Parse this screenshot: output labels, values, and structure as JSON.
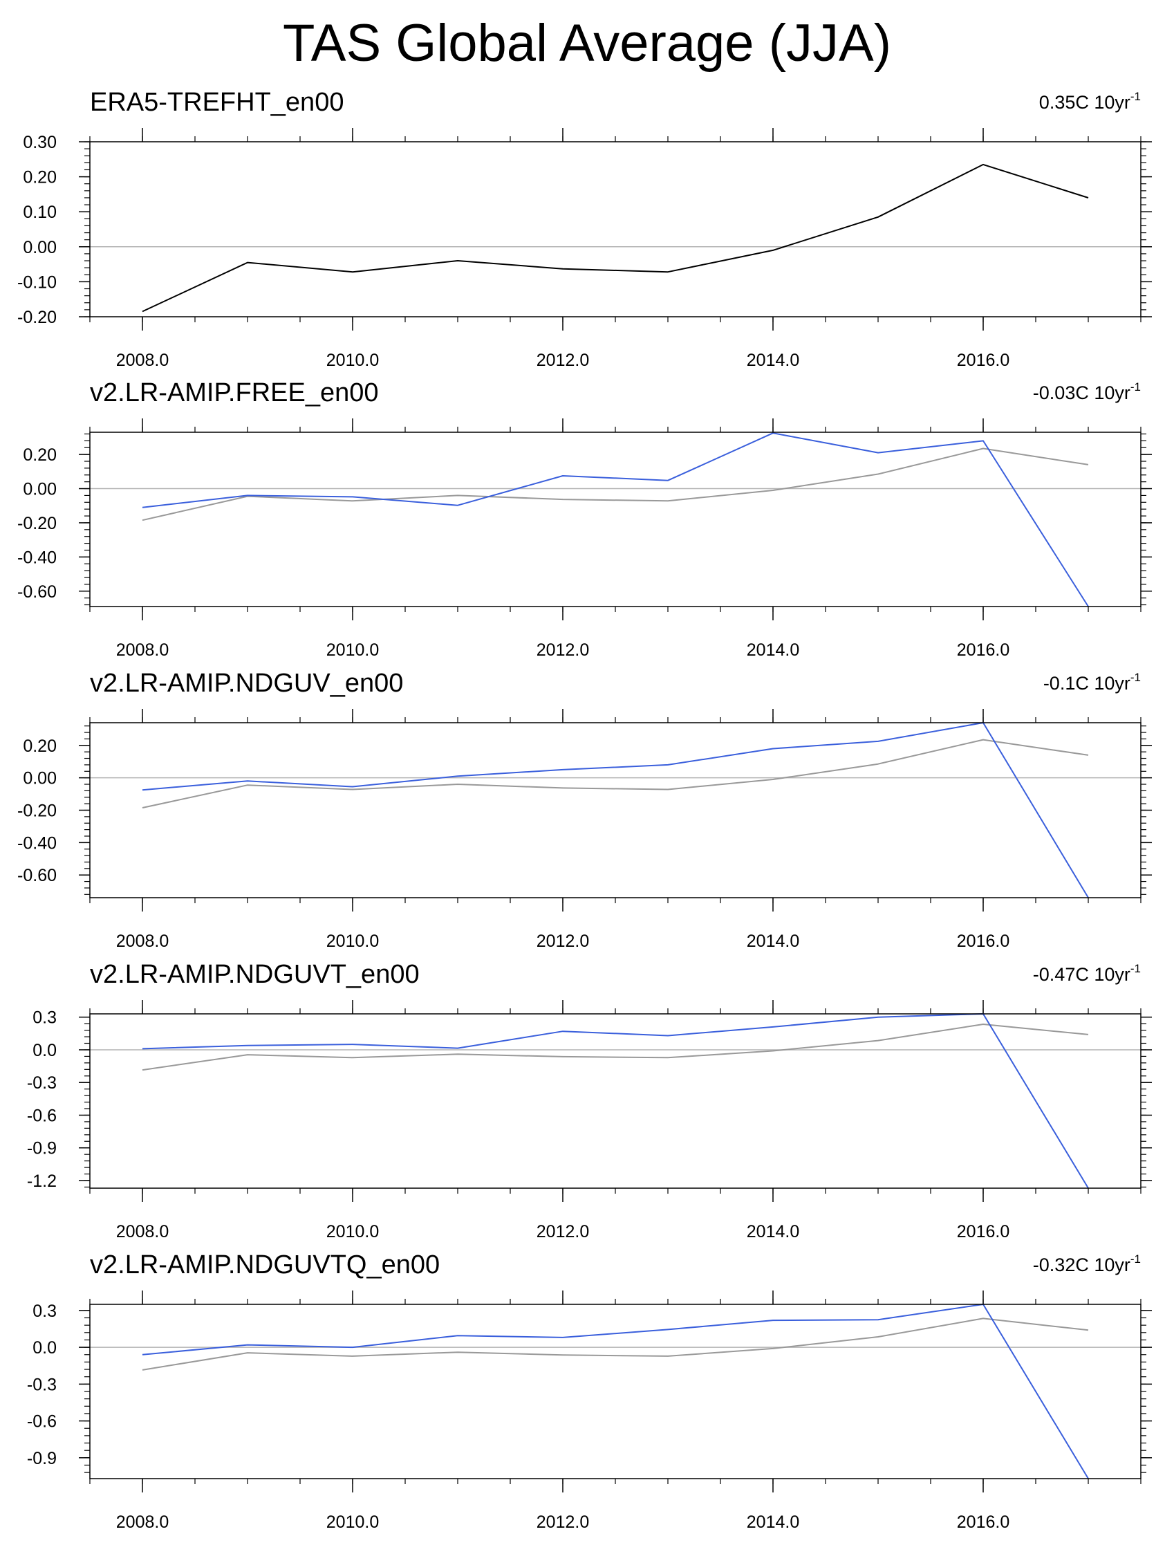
{
  "title": "TAS Global Average (JJA)",
  "colors": {
    "observed": "#000000",
    "reference": "#999999",
    "model": "#3a5fdc",
    "zero_line": "#b3b3b3",
    "axis": "#000000"
  },
  "chart_data": [
    {
      "type": "line",
      "title": "ERA5-TREFHT_en00",
      "trend_value": "0.35C 10yr",
      "trend_exponent": "-1",
      "xlabel": "",
      "ylabel": "",
      "x": [
        2008,
        2009,
        2010,
        2011,
        2012,
        2013,
        2014,
        2015,
        2016,
        2017
      ],
      "xlim": [
        2007.5,
        2017.5
      ],
      "xticks": [
        2008,
        2010,
        2012,
        2014,
        2016
      ],
      "xtick_labels": [
        "2008.0",
        "2010.0",
        "2012.0",
        "2014.0",
        "2016.0"
      ],
      "ylim": [
        -0.2,
        0.3
      ],
      "yticks": [
        -0.2,
        -0.1,
        0.0,
        0.1,
        0.2,
        0.3
      ],
      "ytick_labels": [
        "-0.20",
        "-0.10",
        "0.00",
        "0.10",
        "0.20",
        "0.30"
      ],
      "yminor_step": 0.02,
      "series": [
        {
          "name": "ERA5-TREFHT_en00",
          "color": "#000000",
          "values": [
            -0.185,
            -0.045,
            -0.072,
            -0.04,
            -0.063,
            -0.072,
            -0.01,
            0.085,
            0.235,
            0.14
          ]
        }
      ]
    },
    {
      "type": "line",
      "title": "v2.LR-AMIP.FREE_en00",
      "trend_value": "-0.03C 10yr",
      "trend_exponent": "-1",
      "xlabel": "",
      "ylabel": "",
      "x": [
        2008,
        2009,
        2010,
        2011,
        2012,
        2013,
        2014,
        2015,
        2016,
        2017
      ],
      "xlim": [
        2007.5,
        2017.5
      ],
      "xticks": [
        2008,
        2010,
        2012,
        2014,
        2016
      ],
      "xtick_labels": [
        "2008.0",
        "2010.0",
        "2012.0",
        "2014.0",
        "2016.0"
      ],
      "ylim": [
        -0.69,
        0.33
      ],
      "yticks": [
        -0.6,
        -0.4,
        -0.2,
        0.0,
        0.2
      ],
      "ytick_labels": [
        "-0.60",
        "-0.40",
        "-0.20",
        "0.00",
        "0.20"
      ],
      "yminor_step": 0.04,
      "series": [
        {
          "name": "ERA5-TREFHT_en00",
          "color": "#999999",
          "values": [
            -0.185,
            -0.045,
            -0.072,
            -0.04,
            -0.063,
            -0.072,
            -0.01,
            0.085,
            0.235,
            0.14
          ]
        },
        {
          "name": "v2.LR-AMIP.FREE_en00",
          "color": "#3a5fdc",
          "values": [
            -0.11,
            -0.04,
            -0.048,
            -0.098,
            0.075,
            0.048,
            0.325,
            0.21,
            0.28,
            -0.69
          ]
        }
      ]
    },
    {
      "type": "line",
      "title": "v2.LR-AMIP.NDGUV_en00",
      "trend_value": "-0.1C 10yr",
      "trend_exponent": "-1",
      "xlabel": "",
      "ylabel": "",
      "x": [
        2008,
        2009,
        2010,
        2011,
        2012,
        2013,
        2014,
        2015,
        2016,
        2017
      ],
      "xlim": [
        2007.5,
        2017.5
      ],
      "xticks": [
        2008,
        2010,
        2012,
        2014,
        2016
      ],
      "xtick_labels": [
        "2008.0",
        "2010.0",
        "2012.0",
        "2014.0",
        "2016.0"
      ],
      "ylim": [
        -0.74,
        0.34
      ],
      "yticks": [
        -0.6,
        -0.4,
        -0.2,
        0.0,
        0.2
      ],
      "ytick_labels": [
        "-0.60",
        "-0.40",
        "-0.20",
        "0.00",
        "0.20"
      ],
      "yminor_step": 0.04,
      "series": [
        {
          "name": "ERA5-TREFHT_en00",
          "color": "#999999",
          "values": [
            -0.185,
            -0.045,
            -0.072,
            -0.04,
            -0.063,
            -0.072,
            -0.01,
            0.085,
            0.235,
            0.14
          ]
        },
        {
          "name": "v2.LR-AMIP.NDGUV_en00",
          "color": "#3a5fdc",
          "values": [
            -0.075,
            -0.02,
            -0.055,
            0.01,
            0.05,
            0.08,
            0.18,
            0.225,
            0.34,
            -0.74
          ]
        }
      ]
    },
    {
      "type": "line",
      "title": "v2.LR-AMIP.NDGUVT_en00",
      "trend_value": "-0.47C 10yr",
      "trend_exponent": "-1",
      "xlabel": "",
      "ylabel": "",
      "x": [
        2008,
        2009,
        2010,
        2011,
        2012,
        2013,
        2014,
        2015,
        2016,
        2017
      ],
      "xlim": [
        2007.5,
        2017.5
      ],
      "xticks": [
        2008,
        2010,
        2012,
        2014,
        2016
      ],
      "xtick_labels": [
        "2008.0",
        "2010.0",
        "2012.0",
        "2014.0",
        "2016.0"
      ],
      "ylim": [
        -1.27,
        0.33
      ],
      "yticks": [
        -1.2,
        -0.9,
        -0.6,
        -0.3,
        0.0,
        0.3
      ],
      "ytick_labels": [
        "-1.2",
        "-0.9",
        "-0.6",
        "-0.3",
        "0.0",
        "0.3"
      ],
      "yminor_step": 0.06,
      "series": [
        {
          "name": "ERA5-TREFHT_en00",
          "color": "#999999",
          "values": [
            -0.185,
            -0.045,
            -0.072,
            -0.04,
            -0.063,
            -0.072,
            -0.01,
            0.085,
            0.235,
            0.14
          ]
        },
        {
          "name": "v2.LR-AMIP.NDGUVT_en00",
          "color": "#3a5fdc",
          "values": [
            0.01,
            0.04,
            0.05,
            0.015,
            0.17,
            0.13,
            0.21,
            0.3,
            0.33,
            -1.27
          ]
        }
      ]
    },
    {
      "type": "line",
      "title": "v2.LR-AMIP.NDGUVTQ_en00",
      "trend_value": "-0.32C 10yr",
      "trend_exponent": "-1",
      "xlabel": "",
      "ylabel": "",
      "x": [
        2008,
        2009,
        2010,
        2011,
        2012,
        2013,
        2014,
        2015,
        2016,
        2017
      ],
      "xlim": [
        2007.5,
        2017.5
      ],
      "xticks": [
        2008,
        2010,
        2012,
        2014,
        2016
      ],
      "xtick_labels": [
        "2008.0",
        "2010.0",
        "2012.0",
        "2014.0",
        "2016.0"
      ],
      "ylim": [
        -1.07,
        0.35
      ],
      "yticks": [
        -0.9,
        -0.6,
        -0.3,
        0.0,
        0.3
      ],
      "ytick_labels": [
        "-0.9",
        "-0.6",
        "-0.3",
        "0.0",
        "0.3"
      ],
      "yminor_step": 0.06,
      "series": [
        {
          "name": "ERA5-TREFHT_en00",
          "color": "#999999",
          "values": [
            -0.185,
            -0.045,
            -0.072,
            -0.04,
            -0.063,
            -0.072,
            -0.01,
            0.085,
            0.235,
            0.14
          ]
        },
        {
          "name": "v2.LR-AMIP.NDGUVTQ_en00",
          "color": "#3a5fdc",
          "values": [
            -0.06,
            0.02,
            0.0,
            0.095,
            0.08,
            0.145,
            0.22,
            0.225,
            0.35,
            -1.07
          ]
        }
      ]
    }
  ]
}
